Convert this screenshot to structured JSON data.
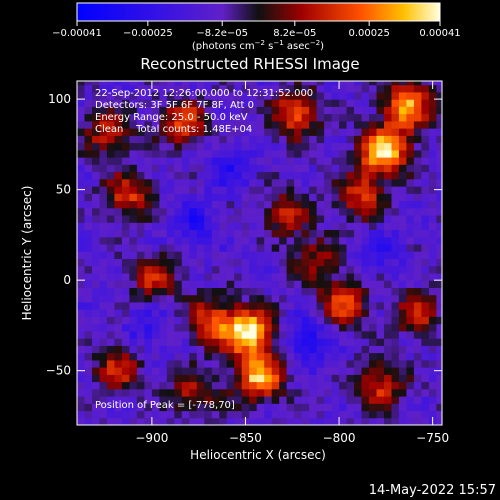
{
  "chart_data": {
    "type": "heatmap",
    "title": "Reconstructed RHESSI Image",
    "xlabel": "Heliocentric X (arcsec)",
    "ylabel": "Heliocentric Y (arcsec)",
    "xlim": [
      -940,
      -745
    ],
    "ylim": [
      -80,
      110
    ],
    "xticks": [
      -900,
      -850,
      -800,
      -750
    ],
    "yticks": [
      -50,
      0,
      50,
      100
    ],
    "xtick_labels": [
      "−900",
      "−850",
      "−800",
      "−750"
    ],
    "ytick_labels": [
      "−50",
      "0",
      "50",
      "100"
    ],
    "colorbar": {
      "range": [
        -0.00041,
        0.00041
      ],
      "ticks": [
        -0.00041,
        -0.00025,
        -8.2e-05,
        8.2e-05,
        0.00025,
        0.00041
      ],
      "tick_labels": [
        "−0.00041",
        "−0.00025",
        "−8.2e−05",
        "8.2e−05",
        "0.00025",
        "0.00041"
      ],
      "unit_prefix": "(photons cm",
      "unit_exp1": "−2",
      "unit_mid1": " s",
      "unit_exp2": "−1",
      "unit_mid2": " asec",
      "unit_exp3": "−2",
      "unit_suffix": ")"
    },
    "annotations": {
      "line1": "22-Sep-2012 12:26:00.000 to 12:31:52.000",
      "line2": "Detectors: 3F 5F 6F 7F 8F, Att 0",
      "line3": "Energy Range: 25.0 - 50.0 keV",
      "line4": "Clean    Total counts: 1.48E+04",
      "peak": "Position of Peak = [-778,70]"
    },
    "hotspots": [
      {
        "x": -778,
        "y": 70,
        "intensity": 1.0
      },
      {
        "x": -765,
        "y": 95,
        "intensity": 0.8
      },
      {
        "x": -825,
        "y": 90,
        "intensity": 0.65
      },
      {
        "x": -790,
        "y": 45,
        "intensity": 0.55
      },
      {
        "x": -850,
        "y": -30,
        "intensity": 0.95
      },
      {
        "x": -845,
        "y": -55,
        "intensity": 0.85
      },
      {
        "x": -870,
        "y": -25,
        "intensity": 0.6
      },
      {
        "x": -885,
        "y": 85,
        "intensity": 0.6
      },
      {
        "x": -915,
        "y": 45,
        "intensity": 0.55
      },
      {
        "x": -925,
        "y": 80,
        "intensity": 0.5
      },
      {
        "x": -800,
        "y": -15,
        "intensity": 0.6
      },
      {
        "x": -780,
        "y": -60,
        "intensity": 0.55
      },
      {
        "x": -760,
        "y": -20,
        "intensity": 0.5
      },
      {
        "x": -900,
        "y": 0,
        "intensity": 0.5
      },
      {
        "x": -920,
        "y": -50,
        "intensity": 0.5
      },
      {
        "x": -830,
        "y": 35,
        "intensity": 0.45
      },
      {
        "x": -815,
        "y": 10,
        "intensity": 0.4
      },
      {
        "x": -880,
        "y": -65,
        "intensity": 0.45
      }
    ],
    "coldspots": [
      {
        "x": -820,
        "y": -35,
        "intensity": 0.7
      },
      {
        "x": -880,
        "y": 30,
        "intensity": 0.5
      },
      {
        "x": -860,
        "y": 60,
        "intensity": 0.45
      },
      {
        "x": -905,
        "y": -30,
        "intensity": 0.4
      },
      {
        "x": -780,
        "y": 15,
        "intensity": 0.4
      }
    ]
  },
  "footer": {
    "timestamp": "14-May-2022 15:57"
  }
}
